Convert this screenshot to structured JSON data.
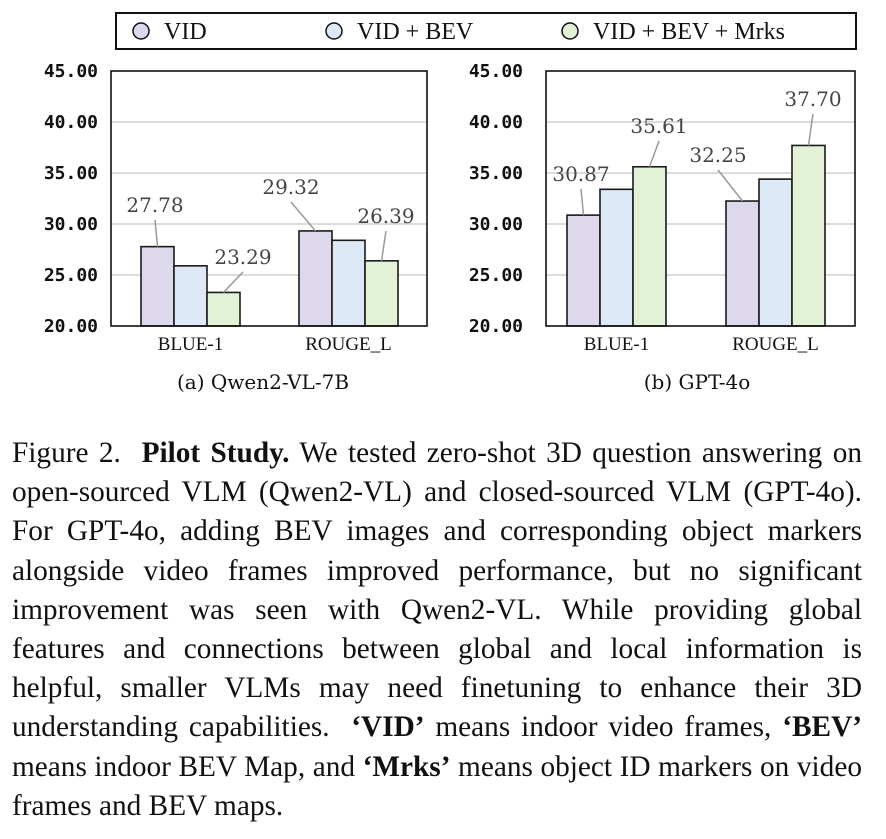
{
  "chart_data": [
    {
      "type": "bar",
      "title": "(a) Qwen2-VL-7B",
      "categories": [
        "BLUE-1",
        "ROUGE_L"
      ],
      "series": [
        {
          "name": "VID",
          "values": [
            27.78,
            29.32
          ]
        },
        {
          "name": "VID + BEV",
          "values": [
            25.9,
            28.4
          ]
        },
        {
          "name": "VID + BEV + Mrks",
          "values": [
            23.29,
            26.39
          ]
        }
      ],
      "data_labels": [
        {
          "series": 0,
          "category": 0,
          "text": "27.78"
        },
        {
          "series": 2,
          "category": 0,
          "text": "23.29"
        },
        {
          "series": 0,
          "category": 1,
          "text": "29.32"
        },
        {
          "series": 2,
          "category": 1,
          "text": "26.39"
        }
      ],
      "ylim": [
        20,
        45
      ],
      "yticks": [
        "20.00",
        "25.00",
        "30.00",
        "35.00",
        "40.00",
        "45.00"
      ],
      "grid": true
    },
    {
      "type": "bar",
      "title": "(b) GPT-4o",
      "categories": [
        "BLUE-1",
        "ROUGE_L"
      ],
      "series": [
        {
          "name": "VID",
          "values": [
            30.87,
            32.25
          ]
        },
        {
          "name": "VID + BEV",
          "values": [
            33.4,
            34.4
          ]
        },
        {
          "name": "VID + BEV + Mrks",
          "values": [
            35.61,
            37.7
          ]
        }
      ],
      "data_labels": [
        {
          "series": 0,
          "category": 0,
          "text": "30.87"
        },
        {
          "series": 2,
          "category": 0,
          "text": "35.61"
        },
        {
          "series": 0,
          "category": 1,
          "text": "32.25"
        },
        {
          "series": 2,
          "category": 1,
          "text": "37.70"
        }
      ],
      "ylim": [
        20,
        45
      ],
      "yticks": [
        "20.00",
        "25.00",
        "30.00",
        "35.00",
        "40.00",
        "45.00"
      ],
      "grid": true
    }
  ],
  "legend": {
    "placement": "top",
    "items": [
      {
        "label": "VID",
        "color": "#ddd8ec"
      },
      {
        "label": "VID + BEV",
        "color": "#dde9f7"
      },
      {
        "label": "VID + BEV + Mrks",
        "color": "#e3f1d6"
      }
    ]
  },
  "colors": {
    "bar_stroke": "#1a1a1a",
    "grid": "#d0d0d0",
    "leader": "#999999",
    "data_label": "#444444"
  },
  "caption": {
    "figure_label": "Figure 2.",
    "bold_title": "Pilot Study.",
    "text_1": "We tested zero-shot 3D question answering on open-sourced VLM (Qwen2-VL) and closed-sourced VLM (GPT-4o). For GPT-4o, adding BEV images and corresponding object markers alongside video frames improved performance, but no significant improvement was seen with Qwen2-VL. While providing global features and connections between global and local information is helpful, smaller VLMs may need finetuning to enhance their 3D understanding capabilities.",
    "term_vid": "‘VID’",
    "text_2": "means indoor video frames,",
    "term_bev": "‘BEV’",
    "text_3": "means indoor BEV Map, and",
    "term_mrks": "‘Mrks’",
    "text_4": "means object ID markers on video frames and BEV maps."
  }
}
